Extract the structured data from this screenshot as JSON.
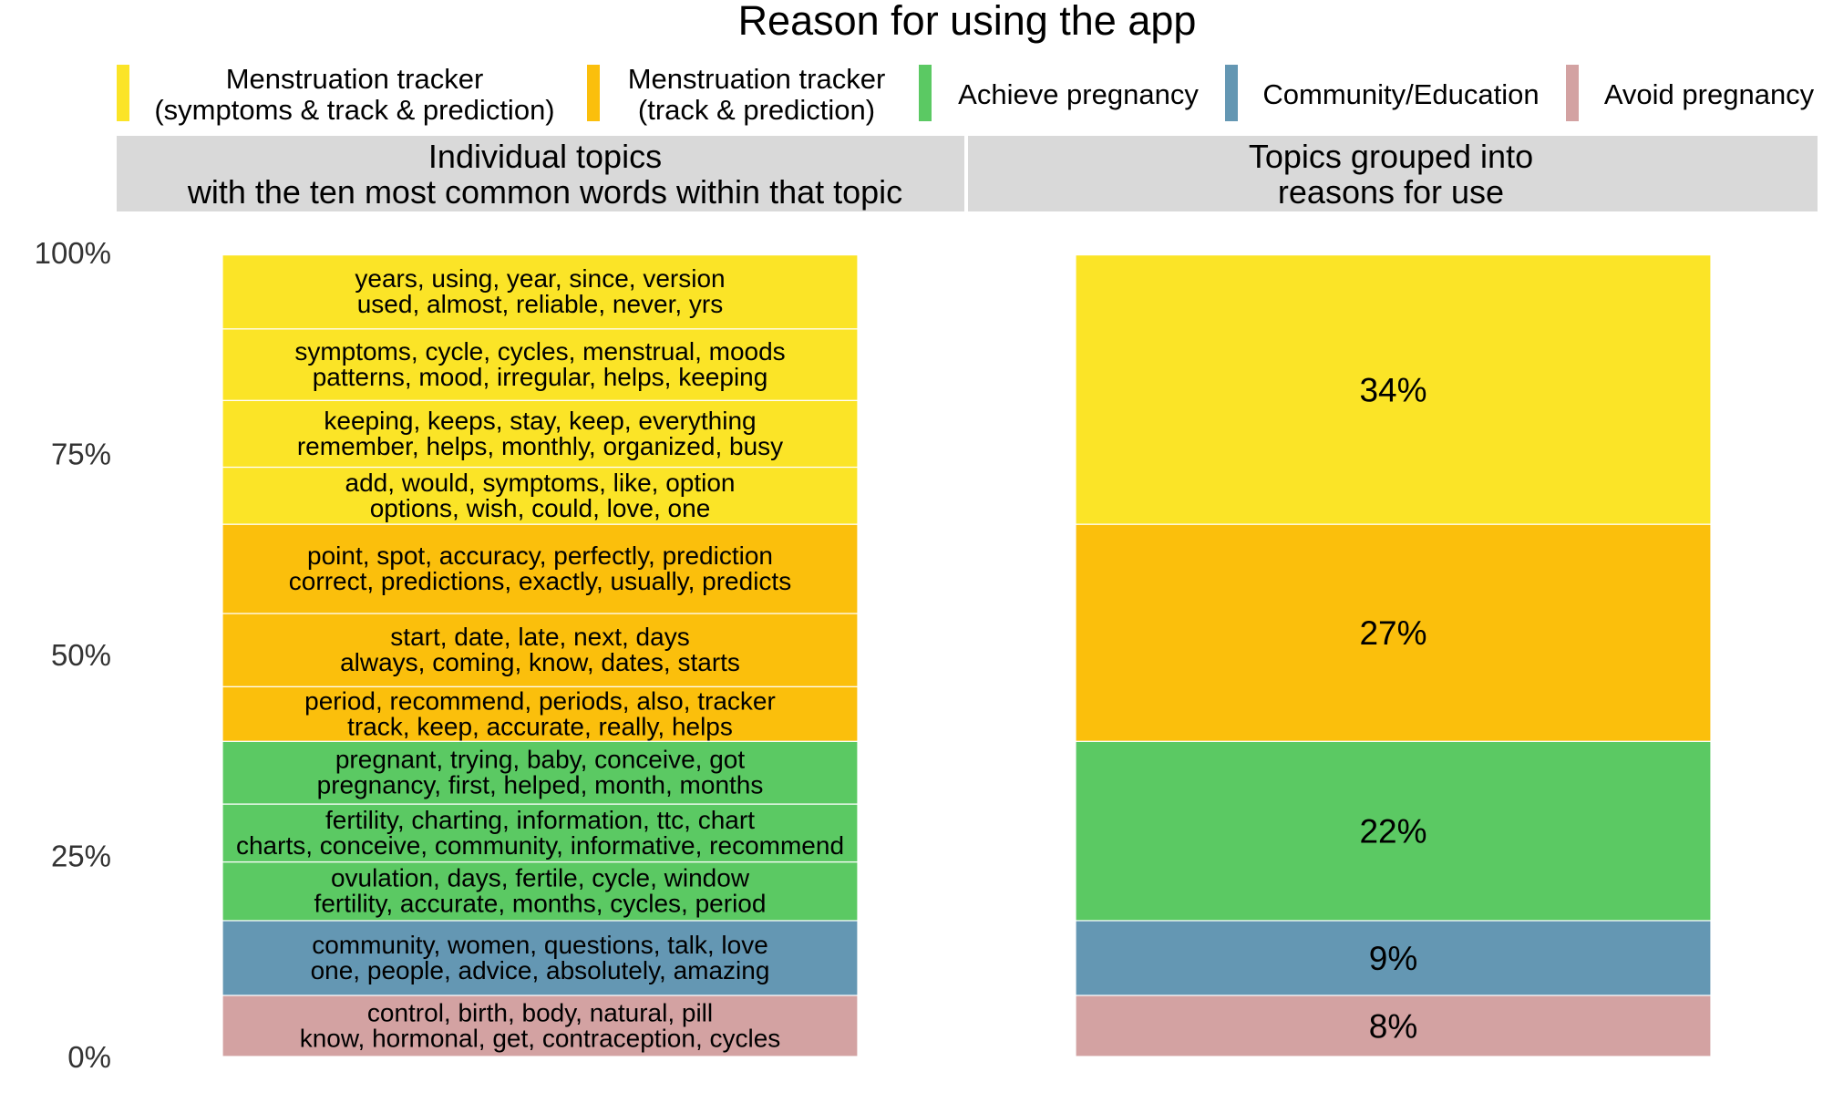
{
  "chart_data": {
    "type": "bar",
    "title": "Reason for using the app",
    "legend": {
      "placement": "top",
      "entries": [
        {
          "id": "symptoms",
          "lines": [
            "Menstruation tracker",
            "(symptoms & track & prediction)"
          ],
          "color": "#FBE427"
        },
        {
          "id": "track",
          "lines": [
            "Menstruation tracker",
            "(track & prediction)"
          ],
          "color": "#FBBF0C"
        },
        {
          "id": "pregnancy",
          "lines": [
            "Achieve pregnancy"
          ],
          "color": "#5BC963"
        },
        {
          "id": "community",
          "lines": [
            "Community/Education"
          ],
          "color": "#6497B3"
        },
        {
          "id": "avoid",
          "lines": [
            "Avoid pregnancy"
          ],
          "color": "#D3A2A2"
        }
      ]
    },
    "panels": [
      {
        "lines": [
          "Individual topics",
          "with the ten most common words within that topic"
        ]
      },
      {
        "lines": [
          "Topics grouped into",
          "reasons for use"
        ]
      }
    ],
    "ylim": [
      0,
      100
    ],
    "y_ticks": [
      "0%",
      "25%",
      "50%",
      "75%",
      "100%"
    ],
    "y_tick_values": [
      0,
      25,
      50,
      75,
      100
    ],
    "individual_topics": [
      {
        "category": "avoid",
        "value": 7.6,
        "words": [
          "control, birth, body, natural, pill",
          "know, hormonal, get, contraception, cycles"
        ]
      },
      {
        "category": "community",
        "value": 9.3,
        "words": [
          "community, women, questions, talk, love",
          "one, people, advice, absolutely, amazing"
        ]
      },
      {
        "category": "pregnancy",
        "value": 7.3,
        "words": [
          "ovulation, days, fertile, cycle, window",
          "fertility, accurate, months, cycles, period"
        ]
      },
      {
        "category": "pregnancy",
        "value": 7.2,
        "words": [
          "fertility, charting, information, ttc, chart",
          "charts, conceive, community, informative, recommend"
        ]
      },
      {
        "category": "pregnancy",
        "value": 7.8,
        "words": [
          "pregnant, trying, baby, conceive, got",
          "pregnancy, first, helped, month, months"
        ]
      },
      {
        "category": "track",
        "value": 6.8,
        "words": [
          "period, recommend, periods, also, tracker",
          "track, keep, accurate, really, helps"
        ]
      },
      {
        "category": "track",
        "value": 9.1,
        "words": [
          "start, date, late, next, days",
          "always, coming, know, dates, starts"
        ]
      },
      {
        "category": "track",
        "value": 11.1,
        "words": [
          "point, spot, accuracy, perfectly, prediction",
          "correct, predictions, exactly, usually, predicts"
        ]
      },
      {
        "category": "symptoms",
        "value": 7.1,
        "words": [
          "add, would, symptoms, like, option",
          "options, wish, could, love, one"
        ]
      },
      {
        "category": "symptoms",
        "value": 8.3,
        "words": [
          "keeping, keeps, stay, keep, everything",
          "remember, helps, monthly, organized, busy"
        ]
      },
      {
        "category": "symptoms",
        "value": 8.9,
        "words": [
          "symptoms, cycle, cycles, menstrual, moods",
          "patterns, mood, irregular, helps, keeping"
        ]
      },
      {
        "category": "symptoms",
        "value": 9.2,
        "words": [
          "years, using, year, since, version",
          "used, almost, reliable, never, yrs"
        ]
      }
    ],
    "grouped": [
      {
        "category": "avoid",
        "value": 7.6,
        "label": "8%"
      },
      {
        "category": "community",
        "value": 9.3,
        "label": "9%"
      },
      {
        "category": "pregnancy",
        "value": 22.3,
        "label": "22%"
      },
      {
        "category": "track",
        "value": 27.0,
        "label": "27%"
      },
      {
        "category": "symptoms",
        "value": 33.5,
        "label": "34%"
      }
    ]
  }
}
